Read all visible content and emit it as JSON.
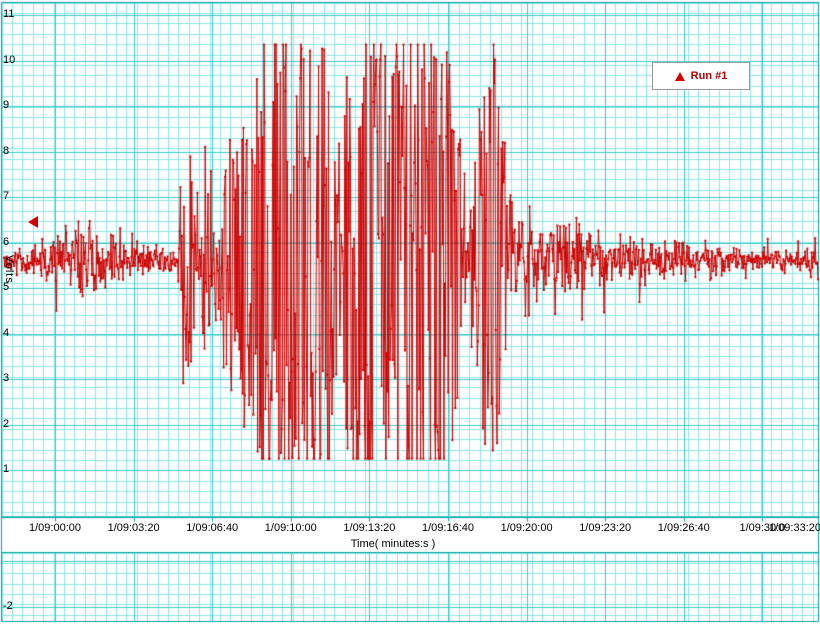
{
  "colors": {
    "background": "#ffffff",
    "grid_minor": "#8ce6e6",
    "grid_major": "#3ccaca",
    "frame": "#00a2a2",
    "tick_text": "#000000",
    "legend_border": "#9a9a9a",
    "legend_text": "#aa0000",
    "series": "#cf0000"
  },
  "chart_data": {
    "type": "line",
    "title": "",
    "xlabel": "Time( minutes:s )",
    "ylabel": "Volts",
    "grid": true,
    "legend_position": "top-right",
    "ylim": [
      -2,
      11
    ],
    "y_tick_values": [
      11,
      10,
      9,
      8,
      7,
      6,
      5,
      4,
      3,
      2,
      1,
      -2
    ],
    "x_tick_labels": [
      "1/09:00:00",
      "1/09:03:20",
      "1/09:06:40",
      "1/09:10:00",
      "1/09:13:20",
      "1/09:16:40",
      "1/09:20:00",
      "1/09:23:20",
      "1/09:26:40",
      "1/09:30:0",
      "1/09:33:20"
    ],
    "series": [
      {
        "name": "Run #1",
        "color": "#cf0000",
        "marker": "dot",
        "baseline": 5.6,
        "noise_clip": [
          1.25,
          10.35
        ],
        "samples": 1150,
        "seed": 20111,
        "amplitude_envelope": [
          [
            0.0,
            0.35
          ],
          [
            0.04,
            0.45
          ],
          [
            0.062,
            0.8
          ],
          [
            0.08,
            1.5
          ],
          [
            0.1,
            1.4
          ],
          [
            0.125,
            0.9
          ],
          [
            0.155,
            0.6
          ],
          [
            0.185,
            0.45
          ],
          [
            0.21,
            0.5
          ],
          [
            0.222,
            3.0
          ],
          [
            0.235,
            2.2
          ],
          [
            0.25,
            2.6
          ],
          [
            0.265,
            2.3
          ],
          [
            0.28,
            3.0
          ],
          [
            0.292,
            3.4
          ],
          [
            0.305,
            3.0
          ],
          [
            0.315,
            4.9
          ],
          [
            0.33,
            5.1
          ],
          [
            0.35,
            4.6
          ],
          [
            0.365,
            5.0
          ],
          [
            0.385,
            5.1
          ],
          [
            0.398,
            4.4
          ],
          [
            0.408,
            2.8
          ],
          [
            0.416,
            2.4
          ],
          [
            0.425,
            4.7
          ],
          [
            0.445,
            5.1
          ],
          [
            0.47,
            5.0
          ],
          [
            0.495,
            4.9
          ],
          [
            0.515,
            5.1
          ],
          [
            0.54,
            4.7
          ],
          [
            0.556,
            3.0
          ],
          [
            0.568,
            2.0
          ],
          [
            0.578,
            2.4
          ],
          [
            0.588,
            3.8
          ],
          [
            0.598,
            4.9
          ],
          [
            0.606,
            4.0
          ],
          [
            0.615,
            2.6
          ],
          [
            0.628,
            1.9
          ],
          [
            0.642,
            1.5
          ],
          [
            0.655,
            1.7
          ],
          [
            0.67,
            1.3
          ],
          [
            0.685,
            1.5
          ],
          [
            0.7,
            1.1
          ],
          [
            0.715,
            0.95
          ],
          [
            0.735,
            1.05
          ],
          [
            0.755,
            0.85
          ],
          [
            0.778,
            0.75
          ],
          [
            0.8,
            0.65
          ],
          [
            0.83,
            0.55
          ],
          [
            0.865,
            0.5
          ],
          [
            0.9,
            0.45
          ],
          [
            0.94,
            0.4
          ],
          [
            0.97,
            0.38
          ],
          [
            1.0,
            0.42
          ]
        ]
      }
    ]
  }
}
